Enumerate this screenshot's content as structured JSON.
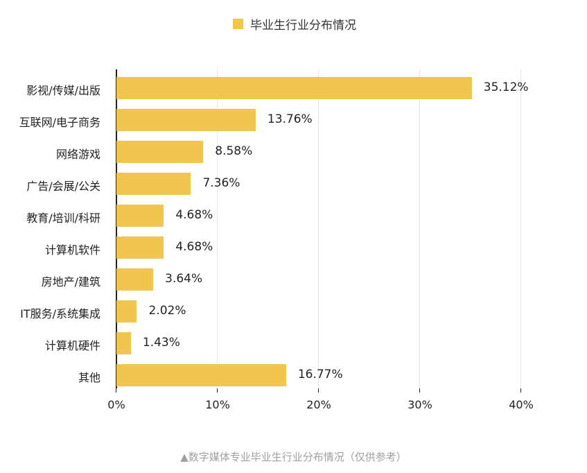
{
  "legend": {
    "label": "毕业生行业分布情况",
    "color": "#f0c64e"
  },
  "caption": "▲数字媒体专业毕业生行业分布情况（仅供参考）",
  "chart_data": {
    "type": "bar",
    "orientation": "horizontal",
    "title": "",
    "legend": [
      "毕业生行业分布情况"
    ],
    "legend_position": "top",
    "categories": [
      "影视/传媒/出版",
      "互联网/电子商务",
      "网络游戏",
      "广告/会展/公关",
      "教育/培训/科研",
      "计算机软件",
      "房地产/建筑",
      "IT服务/系统集成",
      "计算机硬件",
      "其他"
    ],
    "values": [
      35.12,
      13.76,
      8.58,
      7.36,
      4.68,
      4.68,
      3.64,
      2.02,
      1.43,
      16.77
    ],
    "value_labels": [
      "35.12%",
      "13.76%",
      "8.58%",
      "7.36%",
      "4.68%",
      "4.68%",
      "3.64%",
      "2.02%",
      "1.43%",
      "16.77%"
    ],
    "xlabel": "",
    "ylabel": "",
    "xlim": [
      0,
      40
    ],
    "x_ticks": [
      "0%",
      "10%",
      "20%",
      "30%",
      "40%"
    ],
    "grid": true,
    "bar_color": "#f0c64e",
    "caption": "▲数字媒体专业毕业生行业分布情况（仅供参考）"
  }
}
